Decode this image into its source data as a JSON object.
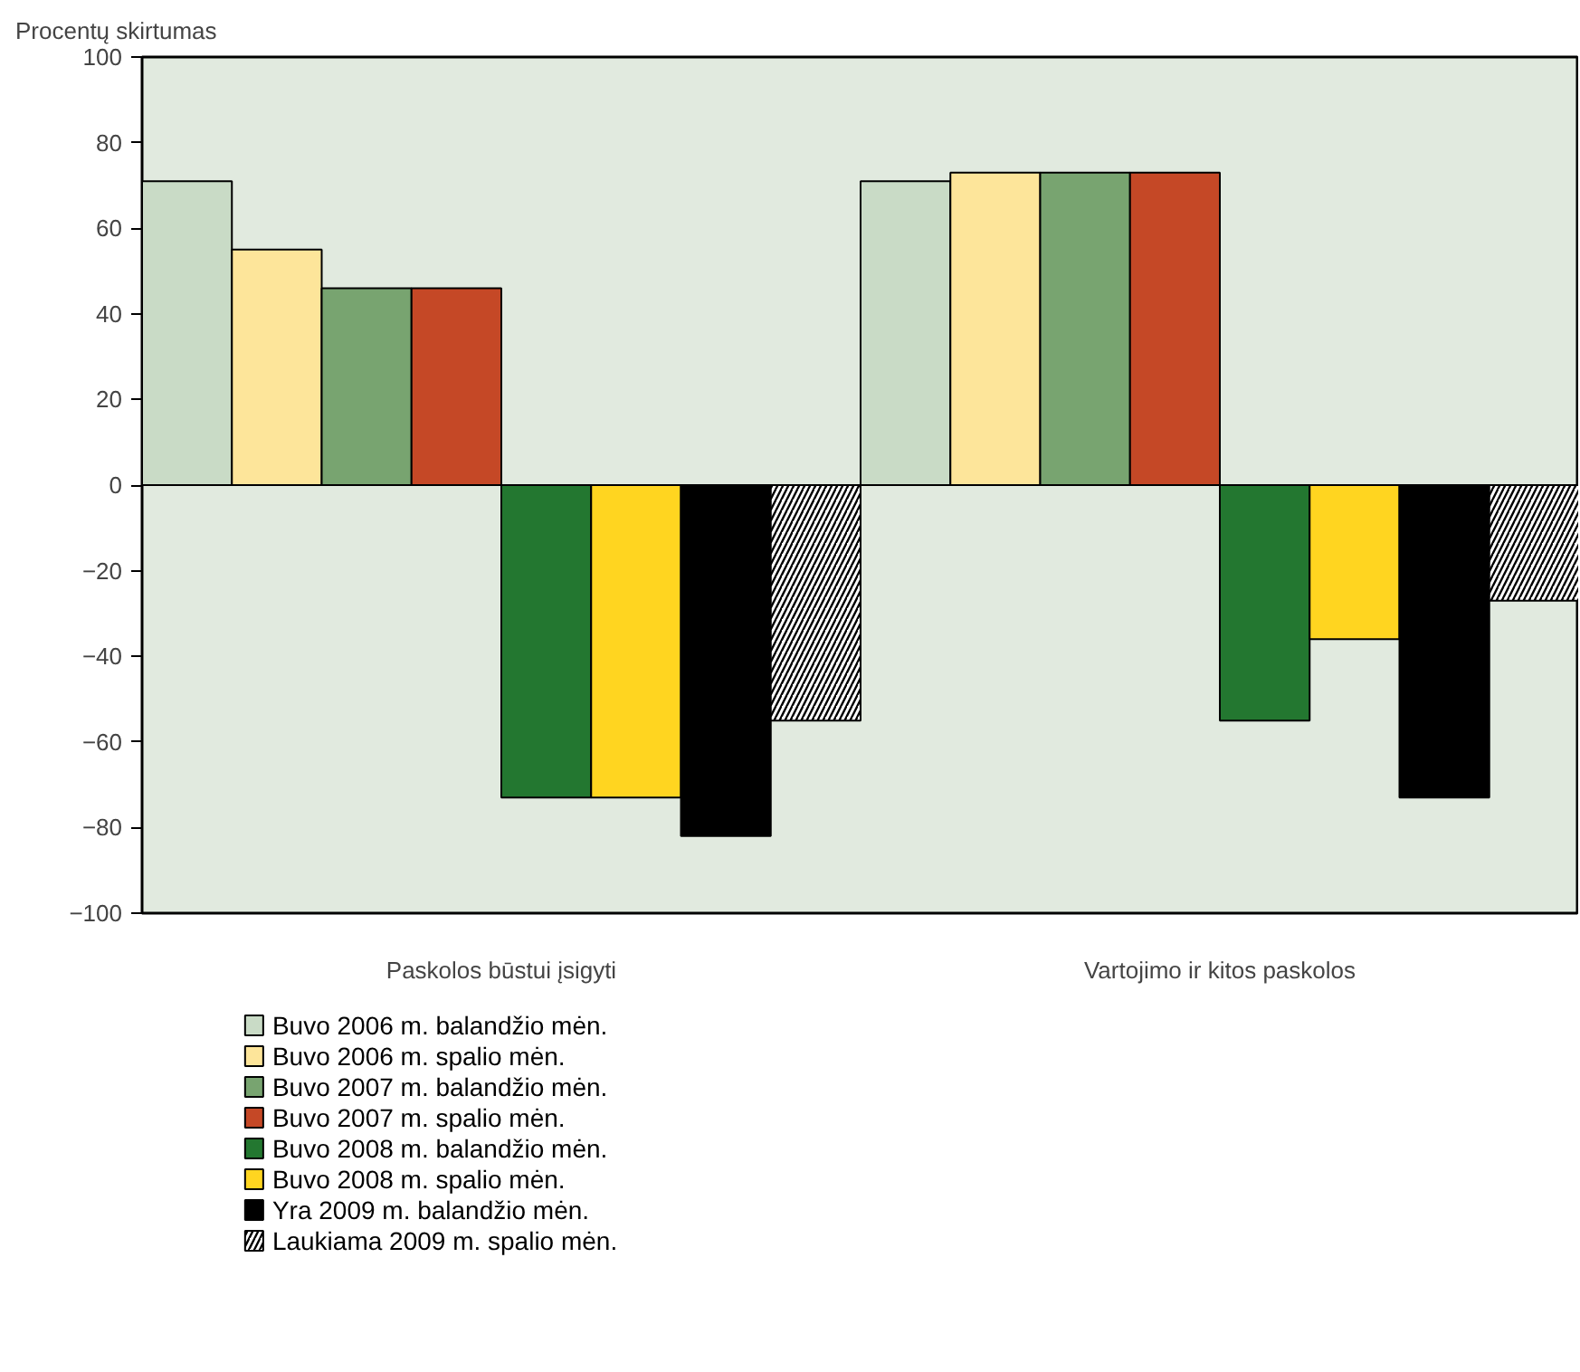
{
  "chart_data": {
    "type": "bar",
    "ylabel": "Procentų skirtumas",
    "categories": [
      "Paskolos būstui įsigyti",
      "Vartojimo ir kitos paskolos"
    ],
    "series": [
      {
        "name": "Buvo 2006 m. balandžio mėn.",
        "color": "#c9dbc6",
        "values": [
          71,
          71
        ]
      },
      {
        "name": "Buvo 2006 m. spalio mėn.",
        "color": "#fde59a",
        "values": [
          55,
          73
        ]
      },
      {
        "name": "Buvo 2007 m. balandžio mėn.",
        "color": "#78a470",
        "values": [
          46,
          73
        ]
      },
      {
        "name": "Buvo 2007 m. spalio mėn.",
        "color": "#c54826",
        "values": [
          46,
          73
        ]
      },
      {
        "name": "Buvo 2008 m. balandžio mėn.",
        "color": "#237730",
        "values": [
          -73,
          -55
        ]
      },
      {
        "name": "Buvo 2008 m. spalio mėn.",
        "color": "#ffd520",
        "values": [
          -73,
          -36
        ]
      },
      {
        "name": "Yra 2009 m. balandžio mėn.",
        "color": "#000000",
        "values": [
          -82,
          -73
        ]
      },
      {
        "name": "Laukiama 2009 m. spalio mėn.",
        "color": "#ffffff",
        "values": [
          -55,
          -27
        ]
      }
    ],
    "ylim": [
      -100,
      100
    ],
    "yticks": [
      100,
      80,
      60,
      40,
      20,
      0,
      {
        "value": -20,
        "label": "−20"
      },
      {
        "value": -40,
        "label": "−40"
      },
      {
        "value": -60,
        "label": "−60"
      },
      {
        "value": -80,
        "label": "−80"
      },
      {
        "value": -100,
        "label": "−100"
      }
    ],
    "grid": false,
    "legend": "bottom left"
  }
}
